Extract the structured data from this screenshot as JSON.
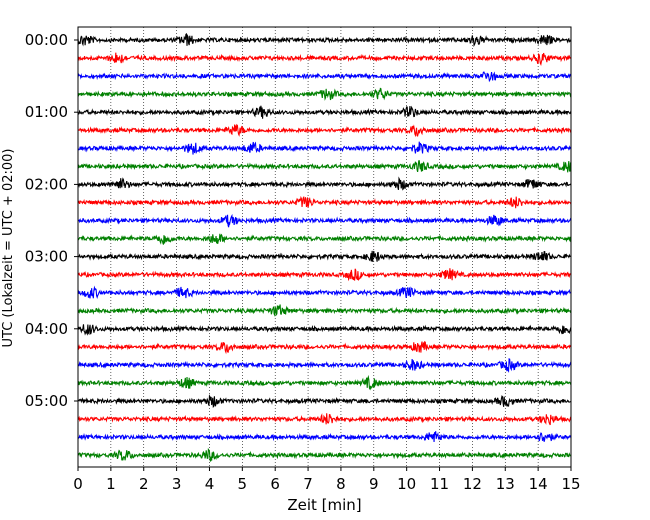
{
  "chart_data": {
    "type": "line",
    "title": "",
    "xlabel": "Zeit  [min]",
    "ylabel": "UTC (Lokalzeit = UTC + 02:00)",
    "xlim": [
      0,
      15
    ],
    "x_ticks": [
      "0",
      "1",
      "2",
      "3",
      "4",
      "5",
      "6",
      "7",
      "8",
      "9",
      "10",
      "11",
      "12",
      "13",
      "14",
      "15"
    ],
    "y_ticks": [
      "00:00",
      "01:00",
      "02:00",
      "03:00",
      "04:00",
      "05:00"
    ],
    "grid": "vertical dotted",
    "legend": "none",
    "trace_interval_minutes": 15,
    "trace_colors": [
      "#000000",
      "#ff0000",
      "#0000ff",
      "#008000"
    ],
    "series": [
      {
        "start": "00:00",
        "color": "#000000",
        "bursts": [
          0.2,
          3.3,
          12.1,
          14.2
        ]
      },
      {
        "start": "00:15",
        "color": "#ff0000",
        "bursts": [
          1.2,
          14.1
        ]
      },
      {
        "start": "00:30",
        "color": "#0000ff",
        "bursts": [
          12.5
        ]
      },
      {
        "start": "00:45",
        "color": "#008000",
        "bursts": [
          7.6,
          9.2
        ]
      },
      {
        "start": "01:00",
        "color": "#000000",
        "bursts": [
          5.6,
          10.1
        ]
      },
      {
        "start": "01:15",
        "color": "#ff0000",
        "bursts": [
          4.8,
          10.3
        ]
      },
      {
        "start": "01:30",
        "color": "#0000ff",
        "bursts": [
          3.5,
          5.3,
          10.4
        ]
      },
      {
        "start": "01:45",
        "color": "#008000",
        "bursts": [
          10.4,
          14.9
        ]
      },
      {
        "start": "02:00",
        "color": "#000000",
        "bursts": [
          1.3,
          9.8,
          13.8
        ]
      },
      {
        "start": "02:15",
        "color": "#ff0000",
        "bursts": [
          6.9,
          13.3
        ]
      },
      {
        "start": "02:30",
        "color": "#0000ff",
        "bursts": [
          4.6,
          12.7
        ]
      },
      {
        "start": "02:45",
        "color": "#008000",
        "bursts": [
          2.6,
          4.2
        ]
      },
      {
        "start": "03:00",
        "color": "#000000",
        "bursts": [
          9.0,
          14.1
        ]
      },
      {
        "start": "03:15",
        "color": "#ff0000",
        "bursts": [
          8.4,
          11.3
        ]
      },
      {
        "start": "03:30",
        "color": "#0000ff",
        "bursts": [
          0.4,
          3.2,
          10.0
        ]
      },
      {
        "start": "03:45",
        "color": "#008000",
        "bursts": [
          6.1
        ]
      },
      {
        "start": "04:00",
        "color": "#000000",
        "bursts": [
          0.3,
          14.8
        ]
      },
      {
        "start": "04:15",
        "color": "#ff0000",
        "bursts": [
          4.5,
          10.4
        ]
      },
      {
        "start": "04:30",
        "color": "#0000ff",
        "bursts": [
          10.2,
          13.1
        ]
      },
      {
        "start": "04:45",
        "color": "#008000",
        "bursts": [
          3.3,
          8.9
        ]
      },
      {
        "start": "05:00",
        "color": "#000000",
        "bursts": [
          4.1,
          13.0
        ]
      },
      {
        "start": "05:15",
        "color": "#ff0000",
        "bursts": [
          7.6,
          14.3
        ]
      },
      {
        "start": "05:30",
        "color": "#0000ff",
        "bursts": [
          10.8,
          14.2
        ]
      },
      {
        "start": "05:45",
        "color": "#008000",
        "bursts": [
          1.4,
          4.0
        ]
      }
    ]
  }
}
